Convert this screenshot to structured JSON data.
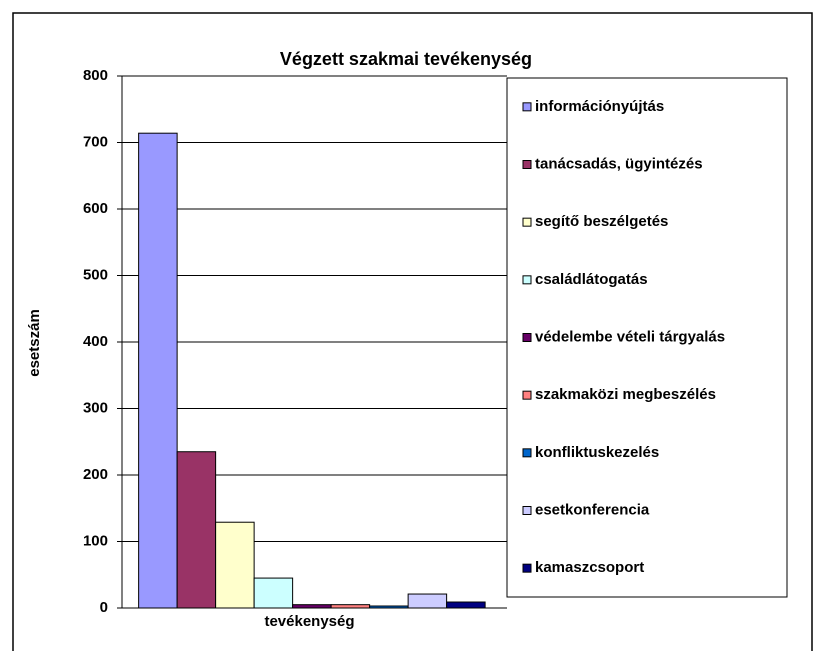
{
  "chart_data": {
    "type": "bar",
    "title": "Végzett szakmai tevékenység",
    "y_label": "esetszám",
    "categories": [
      "tevékenység"
    ],
    "series": [
      {
        "name": "információnyújtás",
        "color": "#9999FF",
        "values": [
          714
        ]
      },
      {
        "name": "tanácsadás, ügyintézés",
        "color": "#993366",
        "values": [
          235
        ]
      },
      {
        "name": "segítő beszélgetés",
        "color": "#FFFFCC",
        "values": [
          129
        ]
      },
      {
        "name": "családlátogatás",
        "color": "#CCFFFF",
        "values": [
          45
        ]
      },
      {
        "name": "védelembe vételi tárgyalás",
        "color": "#660066",
        "values": [
          5
        ]
      },
      {
        "name": "szakmaközi megbeszélés",
        "color": "#FF8080",
        "values": [
          5
        ]
      },
      {
        "name": "konfliktuskezelés",
        "color": "#0066CC",
        "values": [
          3
        ]
      },
      {
        "name": "esetkonferencia",
        "color": "#CCCCFF",
        "values": [
          21
        ]
      },
      {
        "name": "kamaszcsoport",
        "color": "#000080",
        "values": [
          9
        ]
      }
    ],
    "ylim": [
      0,
      800
    ],
    "yticks": [
      0,
      100,
      200,
      300,
      400,
      500,
      600,
      700,
      800
    ],
    "grid": true,
    "legend": "right"
  }
}
